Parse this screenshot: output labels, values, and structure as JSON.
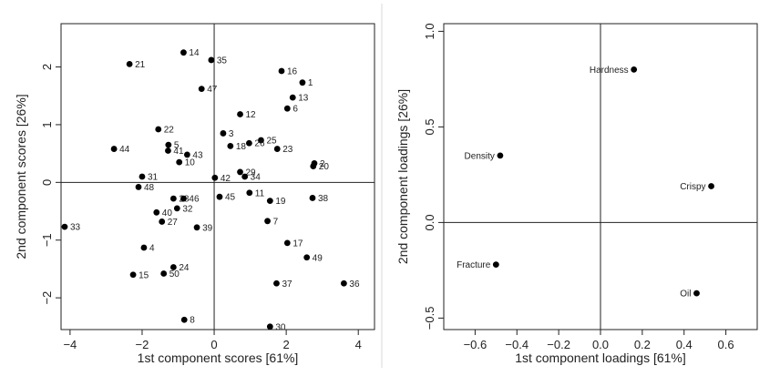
{
  "colors": {
    "point": "#000000",
    "axis": "#222222",
    "divider": "#d9d9d9"
  },
  "chart_data": [
    {
      "type": "scatter",
      "title": "",
      "xlabel": "1st component scores [61%]",
      "ylabel": "2nd component scores [26%]",
      "xlim": [
        -4.25,
        4.45
      ],
      "ylim": [
        -2.55,
        2.75
      ],
      "xticks": [
        -4,
        -2,
        0,
        2,
        4
      ],
      "yticks": [
        -2,
        -1,
        0,
        1,
        2
      ],
      "reference_lines": {
        "x": 0,
        "y": 0
      },
      "points": [
        {
          "label": "1",
          "x": 2.45,
          "y": 1.73
        },
        {
          "label": "2",
          "x": 2.78,
          "y": 0.33
        },
        {
          "label": "3",
          "x": 0.25,
          "y": 0.85
        },
        {
          "label": "4",
          "x": -1.95,
          "y": -1.13
        },
        {
          "label": "5",
          "x": -1.27,
          "y": 0.65
        },
        {
          "label": "6",
          "x": 2.03,
          "y": 1.28
        },
        {
          "label": "7",
          "x": 1.48,
          "y": -0.67
        },
        {
          "label": "8",
          "x": -0.83,
          "y": -2.38
        },
        {
          "label": "10",
          "x": -0.97,
          "y": 0.35
        },
        {
          "label": "11",
          "x": 0.98,
          "y": -0.18
        },
        {
          "label": "12",
          "x": 0.72,
          "y": 1.18
        },
        {
          "label": "13",
          "x": 2.18,
          "y": 1.47
        },
        {
          "label": "14",
          "x": -0.85,
          "y": 2.25
        },
        {
          "label": "15",
          "x": -2.25,
          "y": -1.6
        },
        {
          "label": "16",
          "x": 1.87,
          "y": 1.93
        },
        {
          "label": "17",
          "x": 2.03,
          "y": -1.05
        },
        {
          "label": "18",
          "x": 0.45,
          "y": 0.63
        },
        {
          "label": "19",
          "x": 1.55,
          "y": -0.32
        },
        {
          "label": "20",
          "x": 2.75,
          "y": 0.28
        },
        {
          "label": "21",
          "x": -2.35,
          "y": 2.05
        },
        {
          "label": "22",
          "x": -1.55,
          "y": 0.92
        },
        {
          "label": "23",
          "x": 1.75,
          "y": 0.58
        },
        {
          "label": "24",
          "x": -1.13,
          "y": -1.47
        },
        {
          "label": "25",
          "x": 1.3,
          "y": 0.73
        },
        {
          "label": "26",
          "x": 0.97,
          "y": 0.68
        },
        {
          "label": "27",
          "x": -1.45,
          "y": -0.68
        },
        {
          "label": "28",
          "x": -1.13,
          "y": -0.28
        },
        {
          "label": "29",
          "x": 0.72,
          "y": 0.18
        },
        {
          "label": "30",
          "x": 1.55,
          "y": -2.5
        },
        {
          "label": "31",
          "x": -2.0,
          "y": 0.1
        },
        {
          "label": "32",
          "x": -1.03,
          "y": -0.45
        },
        {
          "label": "33",
          "x": -4.15,
          "y": -0.77
        },
        {
          "label": "34",
          "x": 0.85,
          "y": 0.1
        },
        {
          "label": "35",
          "x": -0.08,
          "y": 2.12
        },
        {
          "label": "36",
          "x": 3.6,
          "y": -1.75
        },
        {
          "label": "37",
          "x": 1.73,
          "y": -1.75
        },
        {
          "label": "38",
          "x": 2.73,
          "y": -0.27
        },
        {
          "label": "39",
          "x": -0.48,
          "y": -0.78
        },
        {
          "label": "40",
          "x": -1.6,
          "y": -0.52
        },
        {
          "label": "41",
          "x": -1.28,
          "y": 0.55
        },
        {
          "label": "42",
          "x": 0.02,
          "y": 0.08
        },
        {
          "label": "43",
          "x": -0.75,
          "y": 0.48
        },
        {
          "label": "44",
          "x": -2.78,
          "y": 0.58
        },
        {
          "label": "45",
          "x": 0.15,
          "y": -0.25
        },
        {
          "label": "46",
          "x": -0.85,
          "y": -0.28
        },
        {
          "label": "47",
          "x": -0.35,
          "y": 1.62
        },
        {
          "label": "48",
          "x": -2.1,
          "y": -0.08
        },
        {
          "label": "49",
          "x": 2.57,
          "y": -1.3
        },
        {
          "label": "50",
          "x": -1.4,
          "y": -1.58
        }
      ]
    },
    {
      "type": "scatter",
      "title": "",
      "xlabel": "1st component loadings [61%]",
      "ylabel": "2nd component loadings [26%]",
      "xlim": [
        -0.75,
        0.75
      ],
      "ylim": [
        -0.56,
        1.04
      ],
      "xticks": [
        -0.6,
        -0.4,
        -0.2,
        0.0,
        0.2,
        0.4,
        0.6
      ],
      "xticklabels": [
        "−0.6",
        "−0.4",
        "−0.2",
        "0.0",
        "0.2",
        "0.4",
        "0.6"
      ],
      "yticks": [
        -0.5,
        0.0,
        0.5,
        1.0
      ],
      "yticklabels": [
        "−0.5",
        "0.0",
        "0.5",
        "1.0"
      ],
      "reference_lines": {
        "x": 0,
        "y": 0
      },
      "points": [
        {
          "label": "Hardness",
          "x": 0.16,
          "y": 0.8
        },
        {
          "label": "Density",
          "x": -0.48,
          "y": 0.35
        },
        {
          "label": "Crispy",
          "x": 0.53,
          "y": 0.19
        },
        {
          "label": "Fracture",
          "x": -0.5,
          "y": -0.22
        },
        {
          "label": "Oil",
          "x": 0.46,
          "y": -0.37
        }
      ]
    }
  ]
}
